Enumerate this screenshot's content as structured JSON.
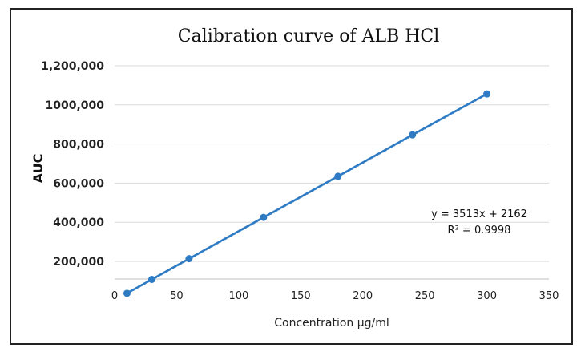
{
  "chart_data": {
    "type": "scatter",
    "title": "Calibration curve of ALB HCl",
    "xlabel": "Concentration µg/ml",
    "ylabel": "AUC",
    "xlim": [
      0,
      350
    ],
    "ylim": [
      110000,
      1200000
    ],
    "x_ticks": [
      "0",
      "50",
      "100",
      "150",
      "200",
      "250",
      "300",
      "350"
    ],
    "y_ticks": [
      {
        "value": 200000,
        "label": "200,000"
      },
      {
        "value": 400000,
        "label": "400,000"
      },
      {
        "value": 600000,
        "label": "600,000"
      },
      {
        "value": 800000,
        "label": "800,000"
      },
      {
        "value": 1000000,
        "label": "1000,000"
      },
      {
        "value": 1200000,
        "label": "1,200,000"
      }
    ],
    "grid": "horizontal",
    "series": [
      {
        "color": "#2e7bc4",
        "points": [
          {
            "x": 10,
            "y": 37000
          },
          {
            "x": 30,
            "y": 108000
          },
          {
            "x": 60,
            "y": 214000
          },
          {
            "x": 120,
            "y": 425000
          },
          {
            "x": 180,
            "y": 635000
          },
          {
            "x": 240,
            "y": 847000
          },
          {
            "x": 300,
            "y": 1056000
          }
        ]
      }
    ],
    "trendline": {
      "slope": 3513,
      "intercept": 2162,
      "equation": "y = 3513x + 2162",
      "r2": "R² = 0.9998"
    }
  }
}
